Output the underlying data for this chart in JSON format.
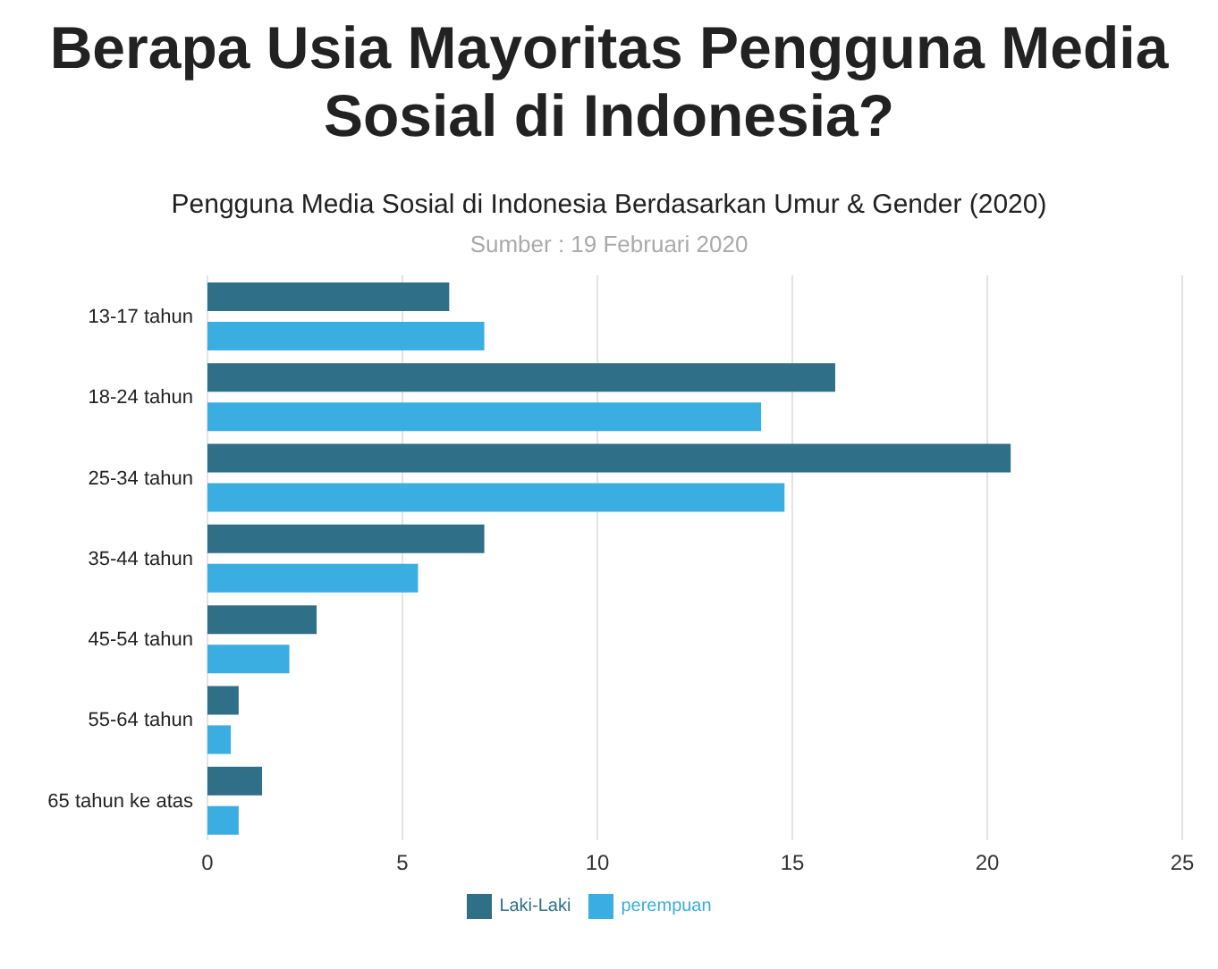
{
  "chart_data": {
    "type": "bar",
    "orientation": "horizontal",
    "title": "Berapa Usia Mayoritas Pengguna Media Sosial di Indonesia?",
    "subtitle": "Pengguna Media Sosial di Indonesia Berdasarkan Umur & Gender (2020)",
    "annotations": [
      "Sumber : 19 Februari 2020"
    ],
    "categories": [
      "13-17 tahun",
      "18-24 tahun",
      "25-34 tahun",
      "35-44 tahun",
      "45-54 tahun",
      "55-64 tahun",
      "65 tahun ke atas"
    ],
    "series": [
      {
        "name": "Laki-Laki",
        "color": "#2f6f87",
        "values": [
          6.2,
          16.1,
          20.6,
          7.1,
          2.8,
          0.8,
          1.4
        ]
      },
      {
        "name": "perempuan",
        "color": "#3aaee0",
        "values": [
          7.1,
          14.2,
          14.8,
          5.4,
          2.1,
          0.6,
          0.8
        ]
      }
    ],
    "xlim": [
      0,
      25
    ],
    "xticks": [
      0,
      5,
      10,
      15,
      20,
      25
    ],
    "grid": "x",
    "legend": "bottom"
  }
}
